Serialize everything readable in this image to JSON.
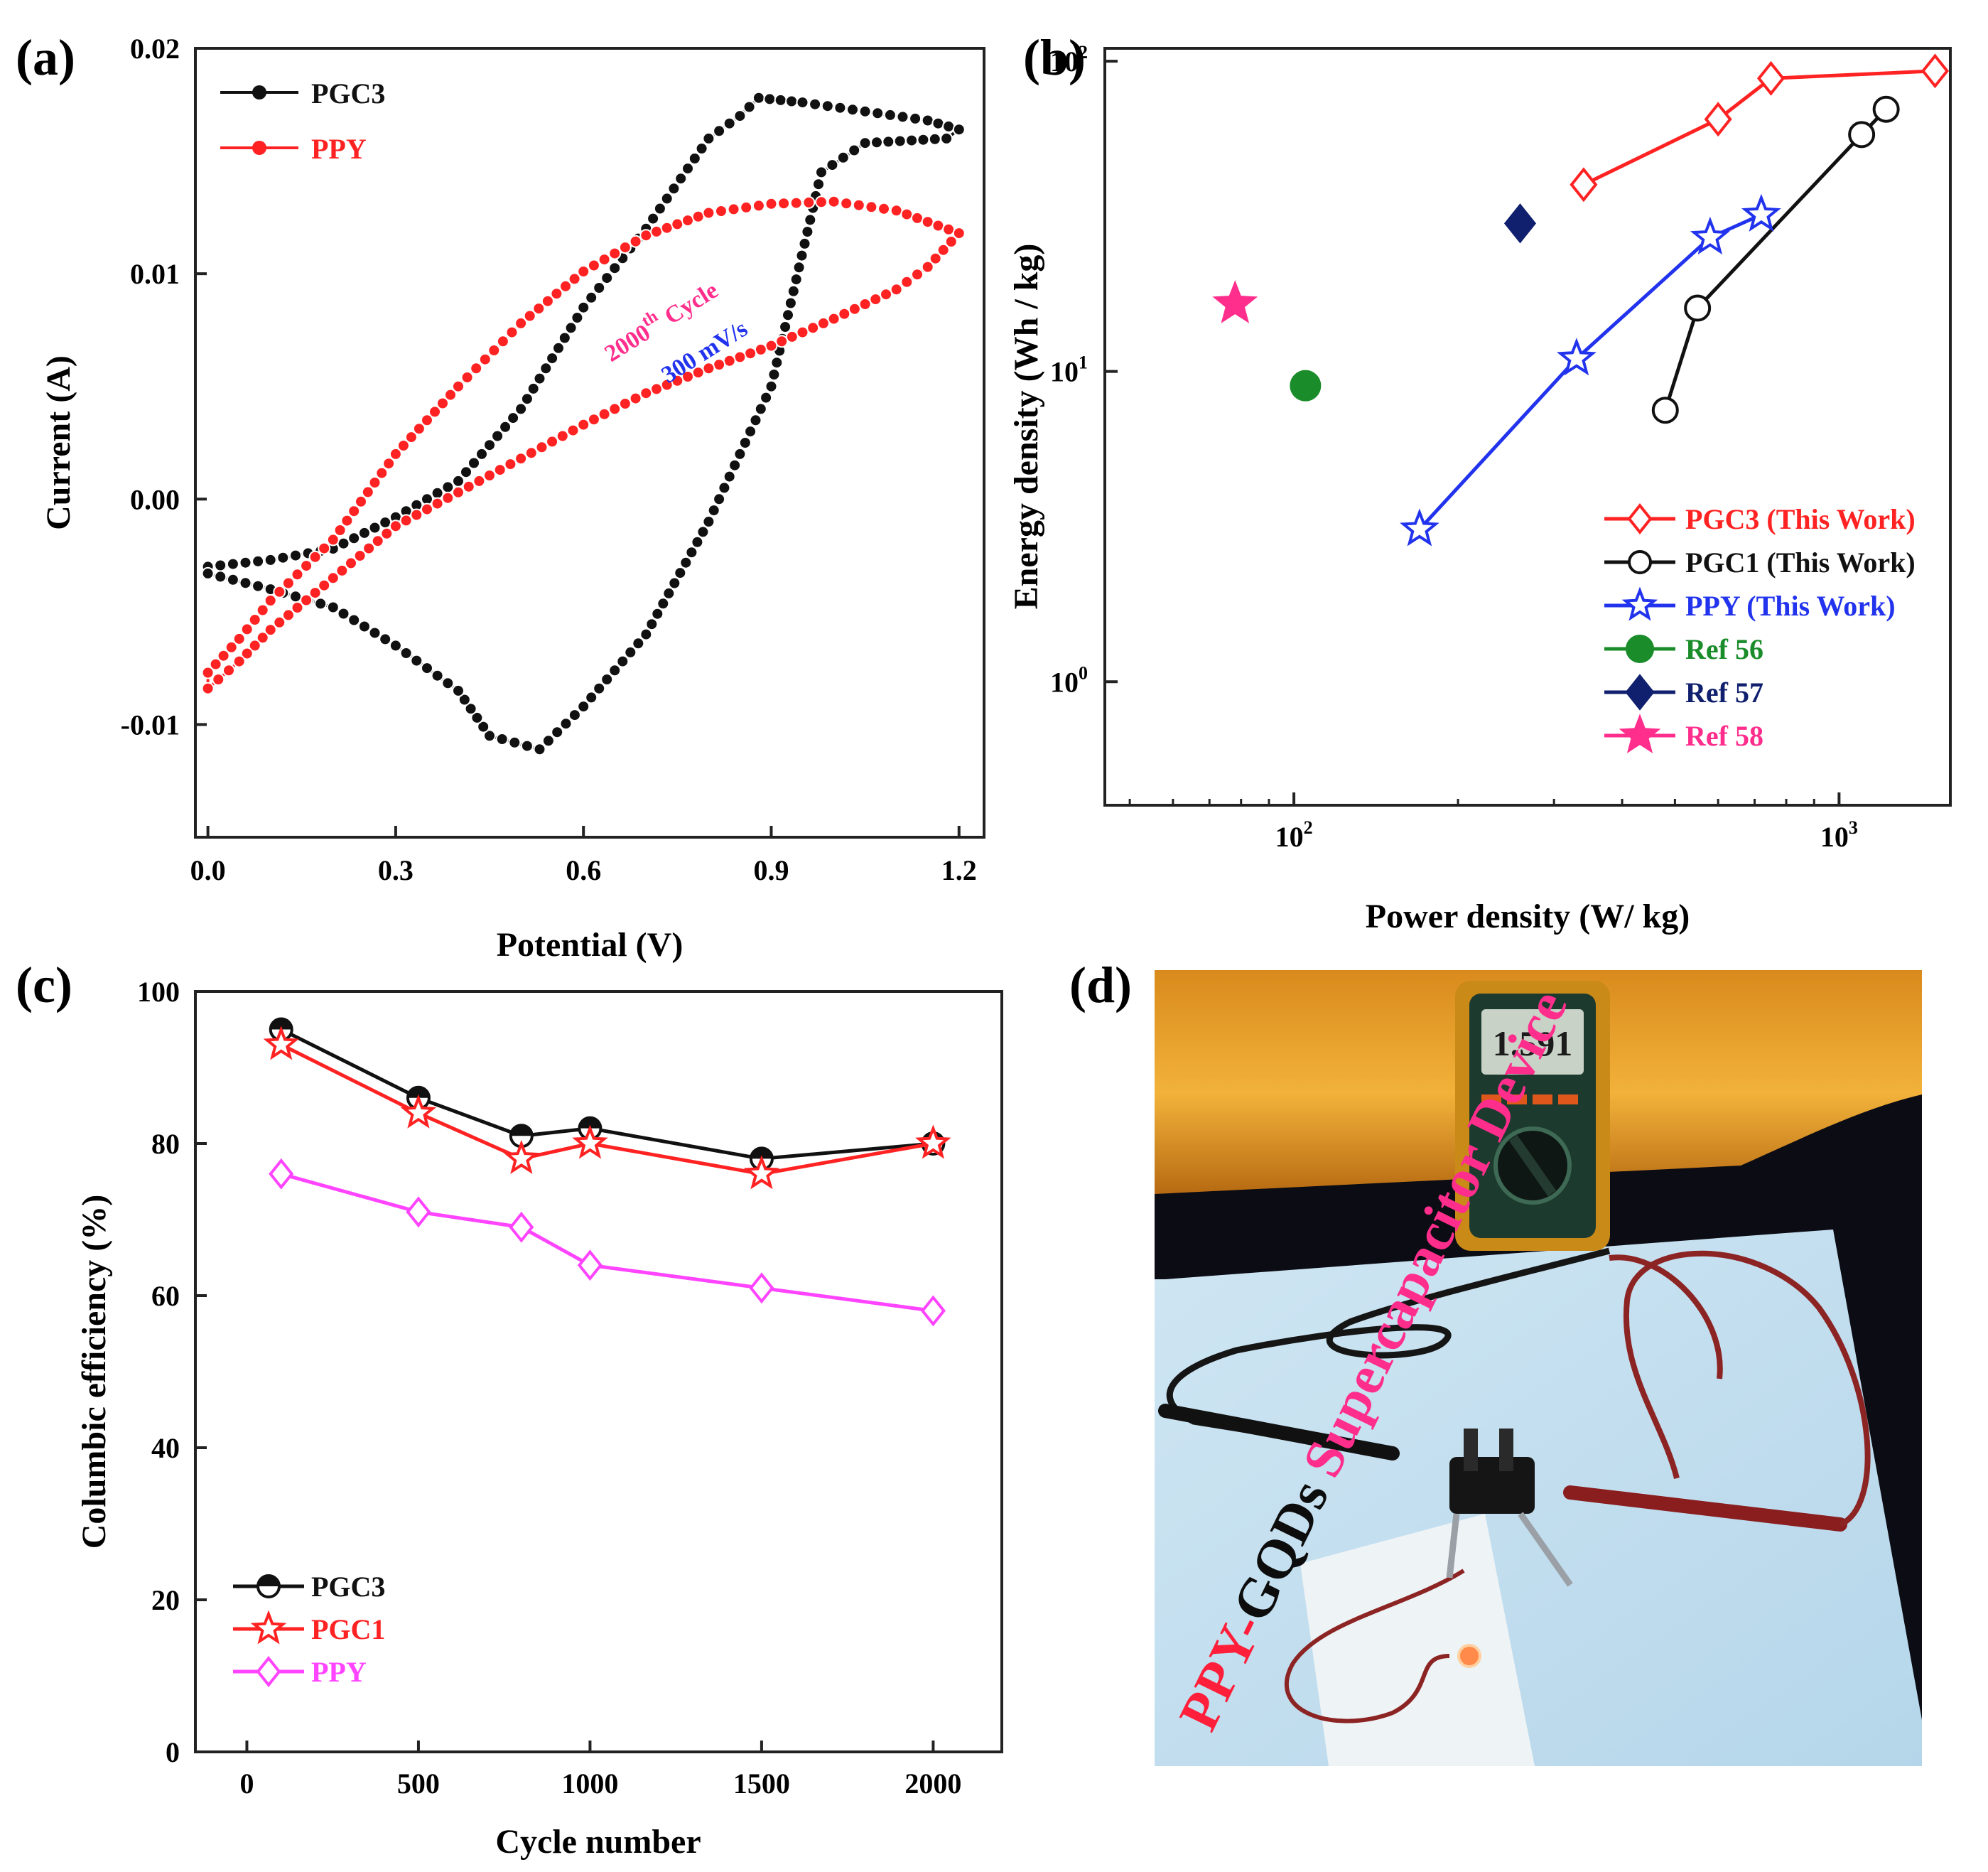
{
  "colors": {
    "black": "#111111",
    "red": "#ff2222",
    "blue": "#2233ee",
    "green": "#1a8c2a",
    "navy": "#10206e",
    "pink": "#ff2e8c",
    "magenta": "#ff44ff",
    "frame": "#222222"
  },
  "panels": {
    "a": {
      "label": "(a)"
    },
    "b": {
      "label": "(b)"
    },
    "c": {
      "label": "(c)"
    },
    "d": {
      "label": "(d)"
    }
  },
  "chart_data": [
    {
      "id": "a",
      "type": "line",
      "title": "",
      "xlabel": "Potential (V)",
      "ylabel": "Current (A)",
      "xlim": [
        -0.02,
        1.24
      ],
      "ylim": [
        -0.015,
        0.02
      ],
      "xticks": [
        0,
        0.3,
        0.6,
        0.9,
        1.2
      ],
      "xtick_labels": [
        "0.0",
        "0.3",
        "0.6",
        "0.9",
        "1.2"
      ],
      "yticks": [
        -0.01,
        0,
        0.01,
        0.02
      ],
      "ytick_labels": [
        "-0.01",
        "0.00",
        "0.01",
        "0.02"
      ],
      "annotations": [
        {
          "text": "2000",
          "sup": "th",
          "text2": "Cycle",
          "color": "pink"
        },
        {
          "text": "300 mV/s",
          "color": "blue"
        }
      ],
      "series": [
        {
          "name": "PGC3",
          "color": "black",
          "marker": "circle",
          "x": [
            0.0,
            0.1,
            0.2,
            0.3,
            0.4,
            0.5,
            0.6,
            0.7,
            0.8,
            0.85,
            0.88,
            0.95,
            1.05,
            1.15,
            1.2,
            1.18,
            1.05,
            0.98,
            0.9,
            0.8,
            0.7,
            0.6,
            0.53,
            0.45,
            0.4,
            0.3,
            0.2,
            0.1,
            0.0
          ],
          "y": [
            -0.003,
            -0.0027,
            -0.0022,
            -0.0008,
            0.0008,
            0.004,
            0.0085,
            0.012,
            0.016,
            0.017,
            0.0178,
            0.0176,
            0.0172,
            0.0168,
            0.0164,
            0.016,
            0.0158,
            0.0145,
            0.005,
            -0.001,
            -0.006,
            -0.0092,
            -0.0111,
            -0.0105,
            -0.0085,
            -0.0065,
            -0.0048,
            -0.004,
            -0.0033
          ]
        },
        {
          "name": "PPY",
          "color": "red",
          "marker": "circle",
          "x": [
            0.0,
            0.05,
            0.1,
            0.2,
            0.3,
            0.4,
            0.5,
            0.6,
            0.7,
            0.8,
            0.9,
            1.0,
            1.1,
            1.2,
            1.15,
            1.1,
            1.0,
            0.9,
            0.8,
            0.7,
            0.6,
            0.5,
            0.4,
            0.3,
            0.2,
            0.1,
            0.05,
            0.0
          ],
          "y": [
            -0.0077,
            -0.0062,
            -0.0045,
            -0.0018,
            0.002,
            0.005,
            0.0078,
            0.0101,
            0.0117,
            0.0127,
            0.0131,
            0.0132,
            0.0128,
            0.0118,
            0.0103,
            0.0093,
            0.008,
            0.0068,
            0.0058,
            0.0047,
            0.0033,
            0.0018,
            0.0003,
            -0.0012,
            -0.0035,
            -0.0058,
            -0.0072,
            -0.0084
          ]
        }
      ],
      "legend": "top-left"
    },
    {
      "id": "b",
      "type": "line",
      "title": "",
      "xlabel": "Power density (W/ kg)",
      "ylabel": "Energy density (Wh / kg)",
      "xscale": "log",
      "yscale": "log",
      "xlim": [
        45,
        1600
      ],
      "ylim": [
        0.4,
        110
      ],
      "xticks": [
        100,
        1000
      ],
      "xtick_exponents": [
        "2",
        "3"
      ],
      "yticks": [
        1,
        10,
        100
      ],
      "ytick_exponents": [
        "0",
        "1",
        "2"
      ],
      "tick_base": "10",
      "series": [
        {
          "name": "PGC3",
          "note": "(This Work)",
          "color": "red",
          "marker": "diamond-open",
          "x": [
            340,
            600,
            750,
            1500
          ],
          "y": [
            40,
            65,
            88,
            93
          ]
        },
        {
          "name": "PGC1",
          "note": "(This Work)",
          "color": "black",
          "marker": "circle-open",
          "x": [
            480,
            550,
            1100,
            1220
          ],
          "y": [
            7.5,
            16,
            58,
            70
          ]
        },
        {
          "name": "PPY",
          "note": "(This Work)",
          "color": "blue",
          "marker": "star-open",
          "x": [
            170,
            330,
            580,
            720
          ],
          "y": [
            3.1,
            11,
            27,
            32
          ]
        },
        {
          "name": "Ref 56",
          "note": "",
          "color": "green",
          "marker": "circle-filled",
          "x": [
            105
          ],
          "y": [
            9
          ]
        },
        {
          "name": "Ref 57",
          "note": "",
          "color": "navy",
          "marker": "diamond-filled",
          "x": [
            260
          ],
          "y": [
            30
          ]
        },
        {
          "name": "Ref 58",
          "note": "",
          "color": "pink",
          "marker": "star-filled",
          "x": [
            78
          ],
          "y": [
            16.5
          ]
        }
      ],
      "legend": "bottom-right"
    },
    {
      "id": "c",
      "type": "line",
      "title": "",
      "xlabel": "Cycle number",
      "ylabel": "Columbic efficiency (%)",
      "xlim": [
        -150,
        2200
      ],
      "ylim": [
        0,
        100
      ],
      "xticks": [
        0,
        500,
        1000,
        1500,
        2000
      ],
      "xtick_labels": [
        "0",
        "500",
        "1000",
        "1500",
        "2000"
      ],
      "yticks": [
        0,
        20,
        40,
        60,
        80,
        100
      ],
      "ytick_labels": [
        "0",
        "20",
        "40",
        "60",
        "80",
        "100"
      ],
      "x": [
        100,
        500,
        800,
        1000,
        1500,
        2000
      ],
      "series": [
        {
          "name": "PGC3",
          "color": "black",
          "marker": "circle-half",
          "values": [
            95,
            86,
            81,
            82,
            78,
            80
          ]
        },
        {
          "name": "PGC1",
          "color": "red",
          "marker": "star-open",
          "values": [
            93,
            84,
            78,
            80,
            76,
            80
          ]
        },
        {
          "name": "PPY",
          "color": "magenta",
          "marker": "diamond-open",
          "values": [
            76,
            71,
            69,
            64,
            61,
            58
          ]
        }
      ],
      "legend": "bottom-left"
    }
  ],
  "photo": {
    "multimeter_reading": "1.591",
    "caption_part1": "PPY-",
    "caption_part2": "GQDs",
    "caption_part3": "Supercapacitor Device"
  }
}
